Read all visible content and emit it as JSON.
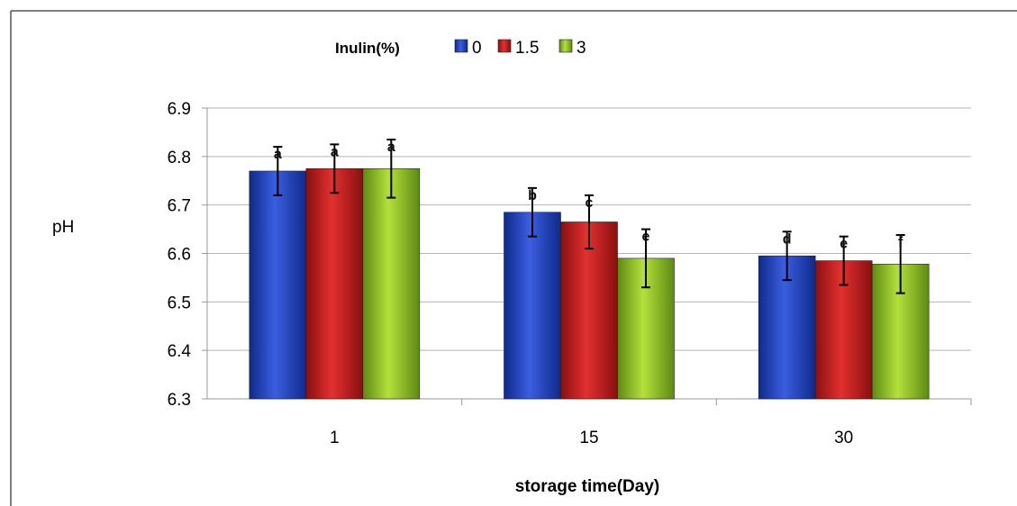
{
  "chart_data": {
    "type": "bar",
    "legend_title": "Inulin(%)",
    "legend_position": "top",
    "xlabel": "storage time(Day)",
    "ylabel": "pH",
    "ylim": [
      6.3,
      6.9
    ],
    "yticks": [
      "6.3",
      "6.4",
      "6.5",
      "6.6",
      "6.7",
      "6.8",
      "6.9"
    ],
    "grid": true,
    "categories": [
      "1",
      "15",
      "30"
    ],
    "series": [
      {
        "name": "0",
        "color": "#1f3fb5",
        "values": [
          6.77,
          6.685,
          6.595
        ],
        "errors": [
          0.05,
          0.05,
          0.05
        ],
        "labels": [
          "a",
          "b",
          "d"
        ]
      },
      {
        "name": "1.5",
        "color": "#c41a1a",
        "values": [
          6.775,
          6.665,
          6.585
        ],
        "errors": [
          0.05,
          0.055,
          0.05
        ],
        "labels": [
          "a",
          "c",
          "e"
        ]
      },
      {
        "name": "3",
        "color": "#8fbf22",
        "values": [
          6.775,
          6.59,
          6.578
        ],
        "errors": [
          0.06,
          0.06,
          0.06
        ],
        "labels": [
          "a",
          "e",
          "f"
        ]
      }
    ]
  }
}
